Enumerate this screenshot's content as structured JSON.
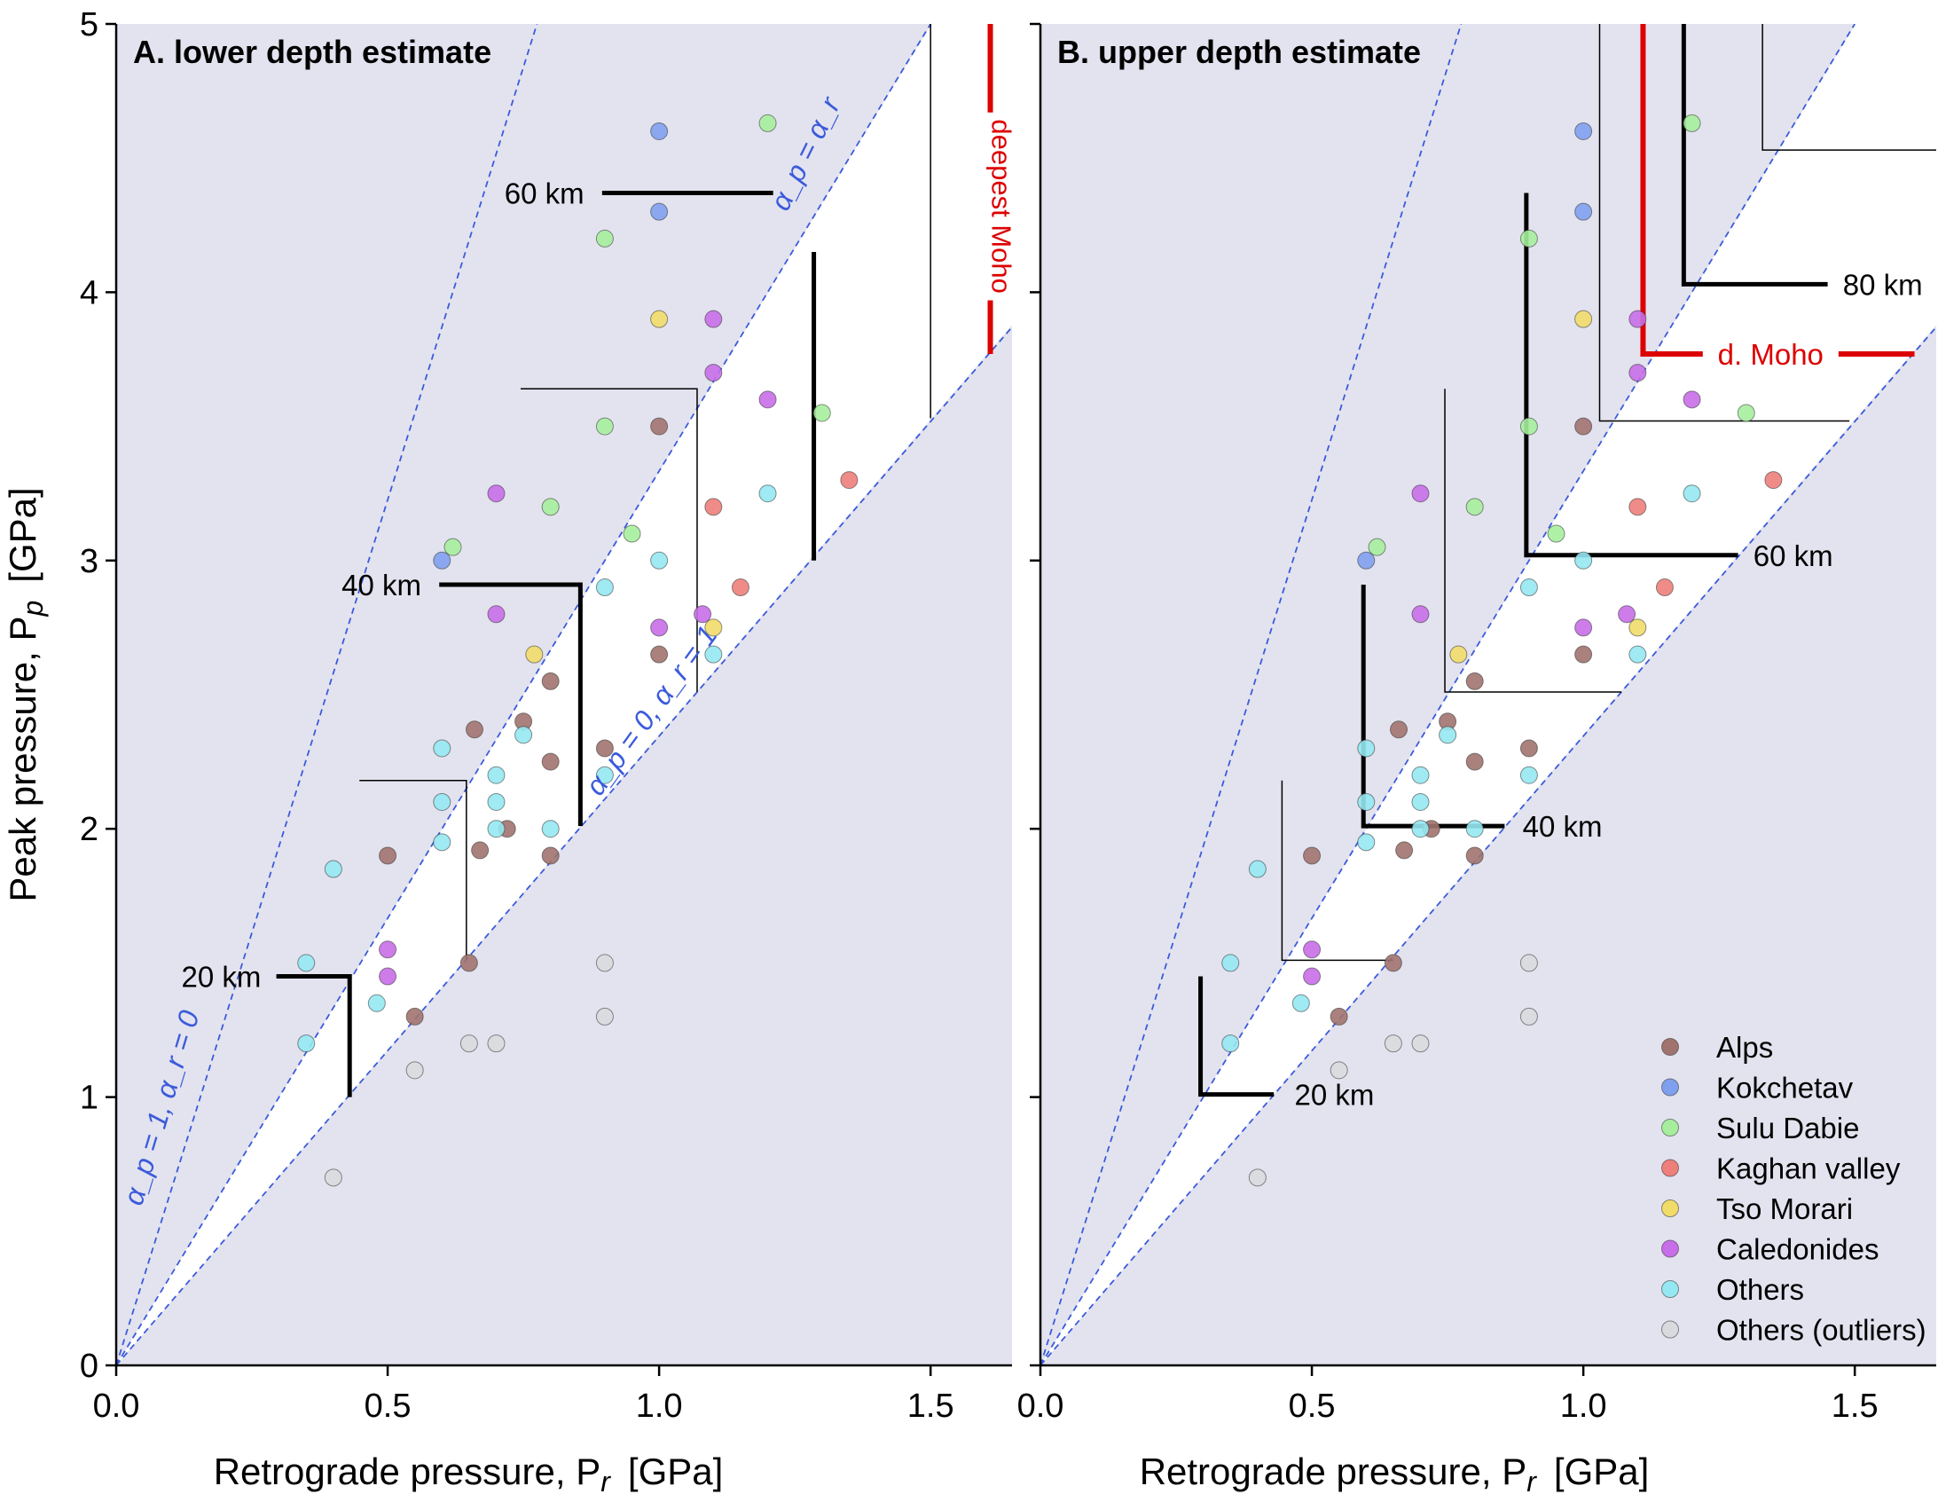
{
  "colors": {
    "excluded_region": "#e3e3ef",
    "guide_line": "#3b5bdb",
    "moho": "#dd0000",
    "Alps": "#a1736f",
    "Kokchetav": "#7fa0ee",
    "Sulu Dabie": "#a6ee9d",
    "Kaghan valley": "#ee7f7b",
    "Tso Morari": "#f1dc6a",
    "Caledonides": "#c86ee8",
    "Others": "#95e8f2",
    "Others (outliers)": "#d8dadd"
  },
  "chart_data": [
    {
      "type": "scatter",
      "title": "A. lower depth estimate",
      "xlabel": "Retrograde pressure, P",
      "xlabel_sub": "r",
      "xlabel_unit": "[GPa]",
      "ylabel": "Peak pressure, P",
      "ylabel_sub": "p",
      "ylabel_unit": "[GPa]",
      "xlim": [
        0,
        1.65
      ],
      "ylim": [
        0,
        5
      ],
      "xticks": [
        "0.0",
        "0.5",
        "1.0",
        "1.5"
      ],
      "yticks": [
        "0",
        "1",
        "2",
        "3",
        "4",
        "5"
      ],
      "grid": false,
      "line_labels": {
        "alpha1": "α_p = 1, α_r = 0",
        "alphaeq": "α_p = α_r",
        "alpha0": "α_p = 0, α_r = 1"
      },
      "depth_labels": [
        "20 km",
        "40 km",
        "60 km"
      ],
      "moho_label": "deepest Moho"
    },
    {
      "type": "scatter",
      "title": "B. upper depth estimate",
      "xlabel": "Retrograde pressure, P",
      "xlabel_sub": "r",
      "xlabel_unit": "[GPa]",
      "xlim": [
        0,
        1.65
      ],
      "ylim": [
        0,
        5
      ],
      "xticks": [
        "0.0",
        "0.5",
        "1.0",
        "1.5"
      ],
      "grid": false,
      "depth_labels": [
        "20 km",
        "40 km",
        "60 km",
        "80 km"
      ],
      "moho_label": "d. Moho",
      "legend_position": "bottom-right",
      "legend": [
        "Alps",
        "Kokchetav",
        "Sulu Dabie",
        "Kaghan valley",
        "Tso Morari",
        "Caledonides",
        "Others",
        "Others (outliers)"
      ]
    }
  ],
  "points": [
    {
      "group": "Alps",
      "x": 0.5,
      "y": 1.9
    },
    {
      "group": "Alps",
      "x": 0.55,
      "y": 1.3
    },
    {
      "group": "Alps",
      "x": 0.65,
      "y": 1.5
    },
    {
      "group": "Alps",
      "x": 0.66,
      "y": 2.37
    },
    {
      "group": "Alps",
      "x": 0.67,
      "y": 1.92
    },
    {
      "group": "Alps",
      "x": 0.72,
      "y": 2.0
    },
    {
      "group": "Alps",
      "x": 0.75,
      "y": 2.4
    },
    {
      "group": "Alps",
      "x": 0.8,
      "y": 2.55
    },
    {
      "group": "Alps",
      "x": 0.8,
      "y": 2.25
    },
    {
      "group": "Alps",
      "x": 0.8,
      "y": 1.9
    },
    {
      "group": "Alps",
      "x": 0.9,
      "y": 2.3
    },
    {
      "group": "Alps",
      "x": 1.0,
      "y": 3.5
    },
    {
      "group": "Alps",
      "x": 1.0,
      "y": 2.65
    },
    {
      "group": "Kokchetav",
      "x": 1.0,
      "y": 4.6
    },
    {
      "group": "Kokchetav",
      "x": 1.0,
      "y": 4.3
    },
    {
      "group": "Kokchetav",
      "x": 0.6,
      "y": 3.0
    },
    {
      "group": "Sulu Dabie",
      "x": 1.2,
      "y": 4.63
    },
    {
      "group": "Sulu Dabie",
      "x": 0.9,
      "y": 4.2
    },
    {
      "group": "Sulu Dabie",
      "x": 0.9,
      "y": 3.5
    },
    {
      "group": "Sulu Dabie",
      "x": 1.3,
      "y": 3.55
    },
    {
      "group": "Sulu Dabie",
      "x": 0.8,
      "y": 3.2
    },
    {
      "group": "Sulu Dabie",
      "x": 0.95,
      "y": 3.1
    },
    {
      "group": "Sulu Dabie",
      "x": 0.62,
      "y": 3.05
    },
    {
      "group": "Kaghan valley",
      "x": 1.35,
      "y": 3.3
    },
    {
      "group": "Kaghan valley",
      "x": 1.1,
      "y": 3.2
    },
    {
      "group": "Kaghan valley",
      "x": 1.15,
      "y": 2.9
    },
    {
      "group": "Tso Morari",
      "x": 1.0,
      "y": 3.9
    },
    {
      "group": "Tso Morari",
      "x": 0.77,
      "y": 2.65
    },
    {
      "group": "Tso Morari",
      "x": 1.1,
      "y": 2.75
    },
    {
      "group": "Caledonides",
      "x": 1.1,
      "y": 3.9
    },
    {
      "group": "Caledonides",
      "x": 1.1,
      "y": 3.7
    },
    {
      "group": "Caledonides",
      "x": 1.2,
      "y": 3.6
    },
    {
      "group": "Caledonides",
      "x": 0.7,
      "y": 3.25
    },
    {
      "group": "Caledonides",
      "x": 0.7,
      "y": 2.8
    },
    {
      "group": "Caledonides",
      "x": 1.0,
      "y": 2.75
    },
    {
      "group": "Caledonides",
      "x": 1.08,
      "y": 2.8
    },
    {
      "group": "Caledonides",
      "x": 0.5,
      "y": 1.55
    },
    {
      "group": "Caledonides",
      "x": 0.5,
      "y": 1.45
    },
    {
      "group": "Others",
      "x": 1.2,
      "y": 3.25
    },
    {
      "group": "Others",
      "x": 1.0,
      "y": 3.0
    },
    {
      "group": "Others",
      "x": 0.9,
      "y": 2.9
    },
    {
      "group": "Others",
      "x": 1.1,
      "y": 2.65
    },
    {
      "group": "Others",
      "x": 0.6,
      "y": 2.3
    },
    {
      "group": "Others",
      "x": 0.7,
      "y": 2.2
    },
    {
      "group": "Others",
      "x": 0.9,
      "y": 2.2
    },
    {
      "group": "Others",
      "x": 0.6,
      "y": 2.1
    },
    {
      "group": "Others",
      "x": 0.7,
      "y": 2.1
    },
    {
      "group": "Others",
      "x": 0.7,
      "y": 2.0
    },
    {
      "group": "Others",
      "x": 0.8,
      "y": 2.0
    },
    {
      "group": "Others",
      "x": 0.6,
      "y": 1.95
    },
    {
      "group": "Others",
      "x": 0.4,
      "y": 1.85
    },
    {
      "group": "Others",
      "x": 0.35,
      "y": 1.5
    },
    {
      "group": "Others",
      "x": 0.48,
      "y": 1.35
    },
    {
      "group": "Others",
      "x": 0.35,
      "y": 1.2
    },
    {
      "group": "Others",
      "x": 0.75,
      "y": 2.35
    },
    {
      "group": "Others (outliers)",
      "x": 0.9,
      "y": 1.5
    },
    {
      "group": "Others (outliers)",
      "x": 0.9,
      "y": 1.3
    },
    {
      "group": "Others (outliers)",
      "x": 0.65,
      "y": 1.2
    },
    {
      "group": "Others (outliers)",
      "x": 0.7,
      "y": 1.2
    },
    {
      "group": "Others (outliers)",
      "x": 0.55,
      "y": 1.1
    },
    {
      "group": "Others (outliers)",
      "x": 0.4,
      "y": 0.7
    }
  ]
}
